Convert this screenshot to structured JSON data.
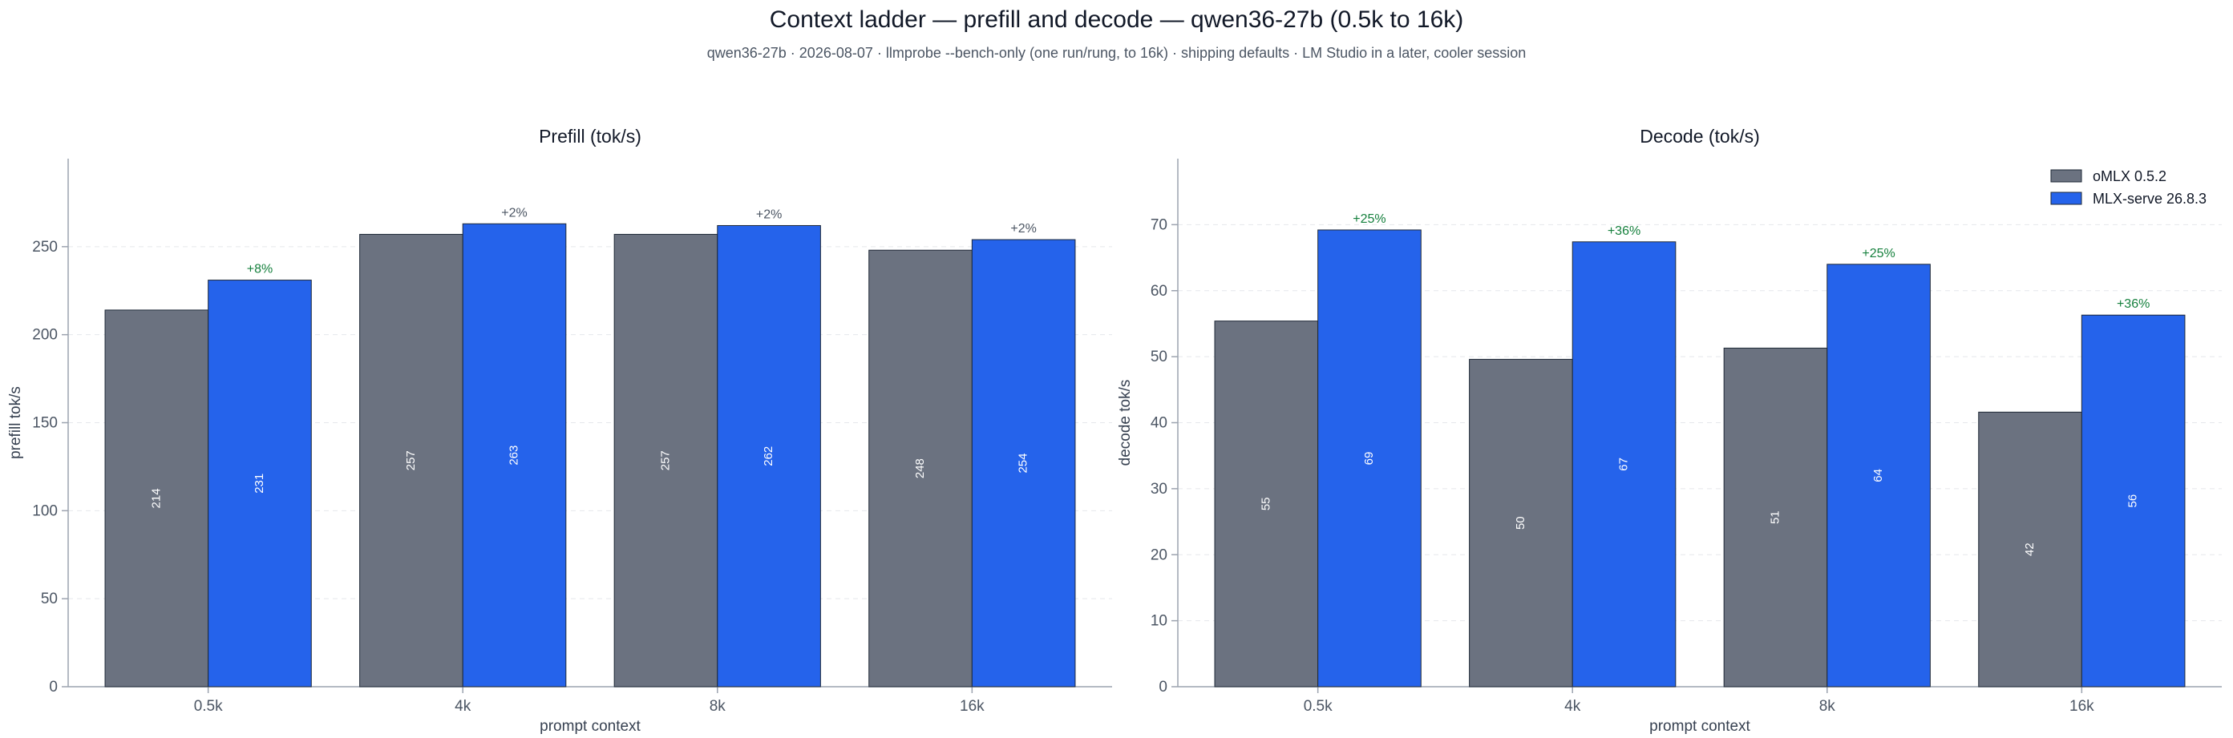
{
  "header": {
    "title": "Context ladder — prefill and decode — qwen36-27b (0.5k to 16k)",
    "subtitle": "qwen36-27b · 2026-08-07 · llmprobe --bench-only (one run/rung, to 16k) · shipping defaults · LM Studio in a later, cooler session"
  },
  "colors": {
    "omlx": "#6b7280",
    "mlx_serve": "#2563eb",
    "delta_positive": "#15803d",
    "delta_neutral": "#4b5563"
  },
  "chart_data": [
    {
      "type": "bar",
      "title": "Prefill (tok/s)",
      "xlabel": "prompt context",
      "ylabel": "prefill tok/s",
      "ylim": [
        0,
        300
      ],
      "yticks": [
        0,
        50,
        100,
        150,
        200,
        250
      ],
      "grid": true,
      "legend": null,
      "categories": [
        "0.5k",
        "4k",
        "8k",
        "16k"
      ],
      "series": [
        {
          "name": "oMLX 0.5.2",
          "values": [
            214,
            257,
            257,
            248
          ],
          "labels": [
            "214",
            "257",
            "257",
            "248"
          ]
        },
        {
          "name": "MLX-serve 26.8.3",
          "values": [
            231,
            263,
            262,
            254
          ],
          "labels": [
            "231",
            "263",
            "262",
            "254"
          ]
        }
      ],
      "annotations": [
        "+8%",
        "+2%",
        "+2%",
        "+2%"
      ],
      "annotation_highlight": [
        true,
        false,
        false,
        false
      ]
    },
    {
      "type": "bar",
      "title": "Decode (tok/s)",
      "xlabel": "prompt context",
      "ylabel": "decode tok/s",
      "ylim": [
        0,
        80
      ],
      "yticks": [
        0,
        10,
        20,
        30,
        40,
        50,
        60,
        70
      ],
      "grid": true,
      "legend": "top-right",
      "categories": [
        "0.5k",
        "4k",
        "8k",
        "16k"
      ],
      "series": [
        {
          "name": "oMLX 0.5.2",
          "values": [
            55.4,
            49.6,
            51.3,
            41.6
          ],
          "labels": [
            "55",
            "50",
            "51",
            "42"
          ]
        },
        {
          "name": "MLX-serve 26.8.3",
          "values": [
            69.2,
            67.4,
            64.0,
            56.3
          ],
          "labels": [
            "69",
            "67",
            "64",
            "56"
          ]
        }
      ],
      "annotations": [
        "+25%",
        "+36%",
        "+25%",
        "+36%"
      ],
      "annotation_highlight": [
        true,
        true,
        true,
        true
      ]
    }
  ]
}
